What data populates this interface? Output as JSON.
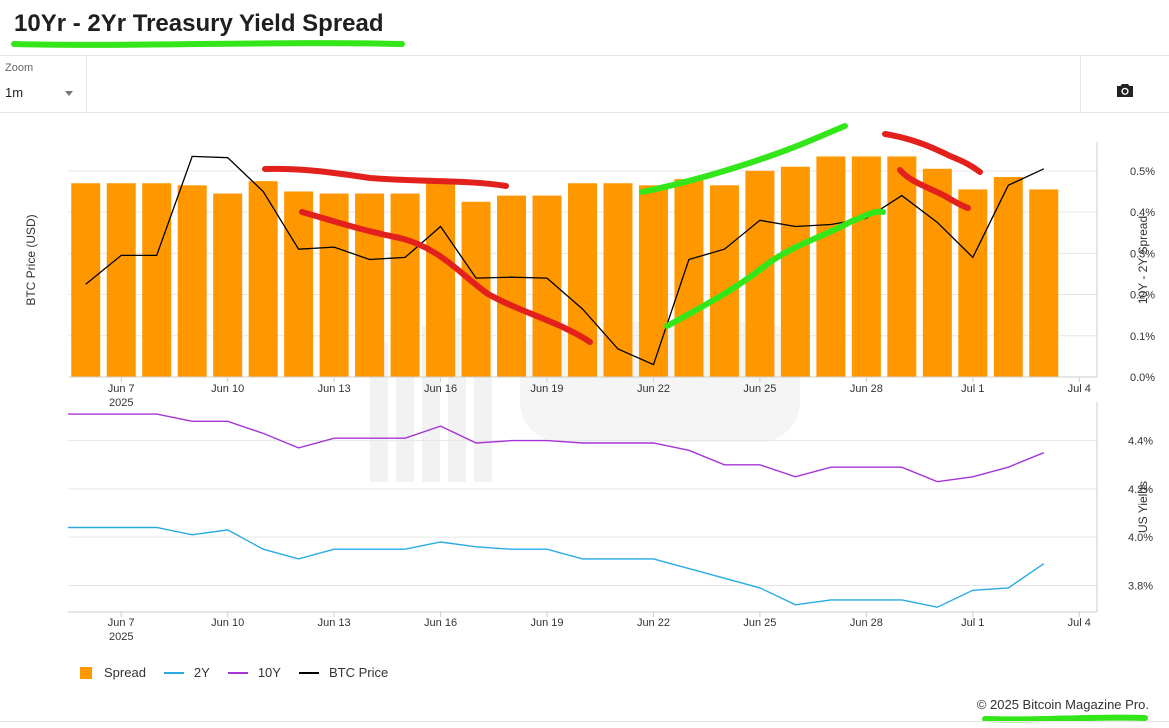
{
  "title": "10Yr - 2Yr Treasury Yield Spread",
  "toolbar": {
    "zoom_label": "Zoom",
    "zoom_value": "1m",
    "camera_icon": "camera-icon"
  },
  "colors": {
    "spread": "#ff9800",
    "two_year": "#29abe2",
    "ten_year": "#a634d6",
    "btc": "#000000",
    "annotation_green": "#33e61a",
    "annotation_red": "#e3211c"
  },
  "chart_data": [
    {
      "type": "bar",
      "x": [
        "2025-06-06",
        "2025-06-07",
        "2025-06-08",
        "2025-06-09",
        "2025-06-10",
        "2025-06-11",
        "2025-06-12",
        "2025-06-13",
        "2025-06-14",
        "2025-06-15",
        "2025-06-16",
        "2025-06-17",
        "2025-06-18",
        "2025-06-19",
        "2025-06-20",
        "2025-06-21",
        "2025-06-22",
        "2025-06-23",
        "2025-06-24",
        "2025-06-25",
        "2025-06-26",
        "2025-06-27",
        "2025-06-28",
        "2025-06-29",
        "2025-06-30",
        "2025-07-01",
        "2025-07-02",
        "2025-07-03",
        "2025-07-04"
      ],
      "x_tick_labels": [
        "Jun 7",
        "Jun 10",
        "Jun 13",
        "Jun 16",
        "Jun 19",
        "Jun 22",
        "Jun 25",
        "Jun 28",
        "Jul 1",
        "Jul 4"
      ],
      "x_year_label": "2025",
      "series": [
        {
          "name": "Spread",
          "axis": "right",
          "values": [
            0.47,
            0.47,
            0.47,
            0.465,
            0.445,
            0.475,
            0.45,
            0.445,
            0.445,
            0.445,
            0.47,
            0.425,
            0.44,
            0.44,
            0.47,
            0.47,
            0.465,
            0.48,
            0.465,
            0.5,
            0.51,
            0.535,
            0.535,
            0.535,
            0.505,
            0.455,
            0.485,
            0.455,
            null
          ]
        },
        {
          "name": "BTC Price",
          "axis": "left",
          "values": [
            0.225,
            0.295,
            0.295,
            0.535,
            0.532,
            0.45,
            0.31,
            0.315,
            0.285,
            0.29,
            0.365,
            0.24,
            0.242,
            0.24,
            0.165,
            0.068,
            0.03,
            0.285,
            0.31,
            0.38,
            0.365,
            0.37,
            0.385,
            0.44,
            0.375,
            0.29,
            0.465,
            0.505,
            null
          ]
        }
      ],
      "y_right": {
        "label": "10Y - 2Y Spread",
        "ticks": [
          "0.0%",
          "0.1%",
          "0.2%",
          "0.3%",
          "0.4%",
          "0.5%"
        ],
        "range": [
          0,
          0.57
        ]
      },
      "y_left": {
        "label": "BTC Price (USD)"
      },
      "grid": true
    },
    {
      "type": "line",
      "x_tick_labels": [
        "Jun 7",
        "Jun 10",
        "Jun 13",
        "Jun 16",
        "Jun 19",
        "Jun 22",
        "Jun 25",
        "Jun 28",
        "Jul 1",
        "Jul 4"
      ],
      "x_year_label": "2025",
      "series": [
        {
          "name": "2Y",
          "values": [
            4.04,
            4.04,
            4.04,
            4.01,
            4.03,
            3.95,
            3.91,
            3.95,
            3.95,
            3.95,
            3.98,
            3.96,
            3.95,
            3.95,
            3.91,
            3.91,
            3.91,
            3.87,
            3.83,
            3.79,
            3.72,
            3.74,
            3.74,
            3.74,
            3.71,
            3.78,
            3.79,
            3.89,
            null
          ]
        },
        {
          "name": "10Y",
          "values": [
            4.51,
            4.51,
            4.51,
            4.48,
            4.48,
            4.43,
            4.37,
            4.41,
            4.41,
            4.41,
            4.46,
            4.39,
            4.4,
            4.4,
            4.39,
            4.39,
            4.39,
            4.36,
            4.3,
            4.3,
            4.25,
            4.29,
            4.29,
            4.29,
            4.23,
            4.25,
            4.29,
            4.35,
            null
          ]
        }
      ],
      "y_right": {
        "label": "US Yields",
        "ticks": [
          "3.8%",
          "4.0%",
          "4.2%",
          "4.4%"
        ],
        "range": [
          3.69,
          4.56
        ]
      },
      "grid": true
    }
  ],
  "legend": [
    {
      "name": "Spread",
      "color": "#ff9800",
      "kind": "box"
    },
    {
      "name": "2Y",
      "color": "#29abe2",
      "kind": "line"
    },
    {
      "name": "10Y",
      "color": "#a634d6",
      "kind": "line"
    },
    {
      "name": "BTC Price",
      "color": "#000000",
      "kind": "line"
    }
  ],
  "footer": "© 2025 Bitcoin Magazine Pro."
}
